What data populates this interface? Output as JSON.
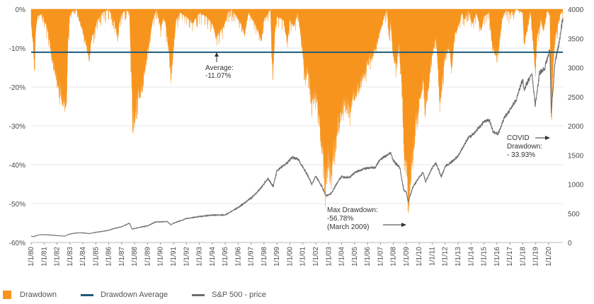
{
  "chart_data": {
    "type": "area",
    "x_tick_labels": [
      "1/1/80",
      "1/1/81",
      "1/1/82",
      "1/1/83",
      "1/1/84",
      "1/1/85",
      "1/1/86",
      "1/1/87",
      "1/1/88",
      "1/1/89",
      "1/1/90",
      "1/1/91",
      "1/1/92",
      "1/1/93",
      "1/1/94",
      "1/1/95",
      "1/1/96",
      "1/1/97",
      "1/1/98",
      "1/1/99",
      "1/1/00",
      "1/1/01",
      "1/1/02",
      "1/1/03",
      "1/1/04",
      "1/1/05",
      "1/1/06",
      "1/1/07",
      "1/1/08",
      "1/1/09",
      "1/1/10",
      "1/1/11",
      "1/1/12",
      "1/1/13",
      "1/1/14",
      "1/1/15",
      "1/1/16",
      "1/1/17",
      "1/1/18",
      "1/1/19",
      "1/1/20"
    ],
    "x_range": [
      1980,
      2021.1
    ],
    "y_left": {
      "ticks": [
        "0%",
        "-10%",
        "-20%",
        "-30%",
        "-40%",
        "-50%",
        "-60%"
      ],
      "range": [
        -60,
        0
      ]
    },
    "y_right": {
      "ticks": [
        "4000",
        "3500",
        "3000",
        "2500",
        "2000",
        "1500",
        "1000",
        "500",
        "0"
      ],
      "range": [
        0,
        4000
      ]
    },
    "average": -11.07,
    "colors": {
      "drawdown": "#f7941d",
      "average": "#1f5a7a",
      "price": "#6d6d6d"
    },
    "series": [
      {
        "name": "Drawdown",
        "kind": "area",
        "axis": "left",
        "points": [
          [
            1980.0,
            -4
          ],
          [
            1980.15,
            -9
          ],
          [
            1980.25,
            -17
          ],
          [
            1980.35,
            -6
          ],
          [
            1980.5,
            -2
          ],
          [
            1980.9,
            -1
          ],
          [
            1981.0,
            -3
          ],
          [
            1981.3,
            -6
          ],
          [
            1981.5,
            -11
          ],
          [
            1981.7,
            -16
          ],
          [
            1981.9,
            -18
          ],
          [
            1982.1,
            -21
          ],
          [
            1982.4,
            -25
          ],
          [
            1982.6,
            -27
          ],
          [
            1982.75,
            -24
          ],
          [
            1982.85,
            -9
          ],
          [
            1983.0,
            -1
          ],
          [
            1983.5,
            0
          ],
          [
            1983.8,
            -4
          ],
          [
            1984.2,
            -9
          ],
          [
            1984.5,
            -14
          ],
          [
            1984.7,
            -8
          ],
          [
            1984.9,
            -6
          ],
          [
            1985.1,
            -3
          ],
          [
            1985.5,
            -1
          ],
          [
            1986.0,
            0
          ],
          [
            1986.4,
            -3
          ],
          [
            1986.7,
            -8
          ],
          [
            1986.9,
            -2
          ],
          [
            1987.3,
            0
          ],
          [
            1987.6,
            -1
          ],
          [
            1987.75,
            -18
          ],
          [
            1987.85,
            -33
          ],
          [
            1988.0,
            -30
          ],
          [
            1988.3,
            -25
          ],
          [
            1988.6,
            -22
          ],
          [
            1988.9,
            -15
          ],
          [
            1989.1,
            -10
          ],
          [
            1989.4,
            -3
          ],
          [
            1989.7,
            0
          ],
          [
            1990.0,
            -5
          ],
          [
            1990.3,
            -2
          ],
          [
            1990.6,
            -10
          ],
          [
            1990.8,
            -19
          ],
          [
            1990.95,
            -14
          ],
          [
            1991.2,
            -3
          ],
          [
            1991.5,
            -1
          ],
          [
            1992.0,
            -2
          ],
          [
            1992.5,
            -4
          ],
          [
            1993.0,
            -1
          ],
          [
            1993.5,
            -2
          ],
          [
            1994.0,
            -4
          ],
          [
            1994.3,
            -8
          ],
          [
            1994.6,
            -6
          ],
          [
            1994.9,
            -5
          ],
          [
            1995.2,
            -1
          ],
          [
            1995.5,
            0
          ],
          [
            1996.2,
            -4
          ],
          [
            1996.5,
            -7
          ],
          [
            1996.8,
            -1
          ],
          [
            1997.3,
            -4
          ],
          [
            1997.8,
            -9
          ],
          [
            1998.0,
            -3
          ],
          [
            1998.5,
            0
          ],
          [
            1998.6,
            -13
          ],
          [
            1998.7,
            -19
          ],
          [
            1998.85,
            -6
          ],
          [
            1999.0,
            -2
          ],
          [
            1999.5,
            -3
          ],
          [
            1999.8,
            -10
          ],
          [
            2000.0,
            -3
          ],
          [
            2000.3,
            -5
          ],
          [
            2000.6,
            -1
          ],
          [
            2000.8,
            -6
          ],
          [
            2001.0,
            -12
          ],
          [
            2001.2,
            -20
          ],
          [
            2001.4,
            -17
          ],
          [
            2001.7,
            -28
          ],
          [
            2001.9,
            -24
          ],
          [
            2002.2,
            -30
          ],
          [
            2002.5,
            -40
          ],
          [
            2002.7,
            -48
          ],
          [
            2002.8,
            -50
          ],
          [
            2002.95,
            -43
          ],
          [
            2003.15,
            -48
          ],
          [
            2003.3,
            -41
          ],
          [
            2003.6,
            -36
          ],
          [
            2003.9,
            -31
          ],
          [
            2004.2,
            -26
          ],
          [
            2004.6,
            -29
          ],
          [
            2004.9,
            -24
          ],
          [
            2005.3,
            -22
          ],
          [
            2005.7,
            -19
          ],
          [
            2006.0,
            -15
          ],
          [
            2006.4,
            -13
          ],
          [
            2006.7,
            -10
          ],
          [
            2007.0,
            -6
          ],
          [
            2007.3,
            -2
          ],
          [
            2007.5,
            0
          ],
          [
            2007.7,
            -8
          ],
          [
            2007.8,
            -3
          ],
          [
            2008.0,
            -13
          ],
          [
            2008.2,
            -16
          ],
          [
            2008.45,
            -10
          ],
          [
            2008.7,
            -24
          ],
          [
            2008.85,
            -42
          ],
          [
            2009.0,
            -43
          ],
          [
            2009.15,
            -57
          ],
          [
            2009.3,
            -47
          ],
          [
            2009.5,
            -40
          ],
          [
            2009.8,
            -31
          ],
          [
            2010.0,
            -28
          ],
          [
            2010.3,
            -19
          ],
          [
            2010.45,
            -28
          ],
          [
            2010.7,
            -22
          ],
          [
            2011.0,
            -13
          ],
          [
            2011.3,
            -8
          ],
          [
            2011.6,
            -26
          ],
          [
            2011.8,
            -20
          ],
          [
            2012.0,
            -13
          ],
          [
            2012.3,
            -10
          ],
          [
            2012.5,
            -17
          ],
          [
            2012.7,
            -8
          ],
          [
            2013.0,
            -5
          ],
          [
            2013.3,
            -1
          ],
          [
            2013.5,
            -3
          ],
          [
            2013.8,
            0
          ],
          [
            2014.1,
            -4
          ],
          [
            2014.4,
            -1
          ],
          [
            2014.8,
            -6
          ],
          [
            2015.0,
            -2
          ],
          [
            2015.4,
            -1
          ],
          [
            2015.65,
            -11
          ],
          [
            2016.1,
            -13
          ],
          [
            2016.4,
            -3
          ],
          [
            2016.7,
            0
          ],
          [
            2017.0,
            -1
          ],
          [
            2017.5,
            0
          ],
          [
            2018.0,
            -1
          ],
          [
            2018.1,
            -10
          ],
          [
            2018.3,
            -7
          ],
          [
            2018.6,
            0
          ],
          [
            2018.9,
            -14
          ],
          [
            2018.97,
            -19
          ],
          [
            2019.1,
            -8
          ],
          [
            2019.4,
            -3
          ],
          [
            2019.6,
            -6
          ],
          [
            2019.9,
            0
          ],
          [
            2020.1,
            -2
          ],
          [
            2020.2,
            -34
          ],
          [
            2020.35,
            -16
          ],
          [
            2020.5,
            -8
          ],
          [
            2020.7,
            -5
          ],
          [
            2020.85,
            -2
          ],
          [
            2021.1,
            0
          ]
        ]
      },
      {
        "name": "Drawdown Average",
        "kind": "line",
        "axis": "left"
      },
      {
        "name": "S&P 500 - price",
        "kind": "line",
        "axis": "right",
        "points": [
          [
            1980.0,
            108
          ],
          [
            1980.2,
            100
          ],
          [
            1980.6,
            130
          ],
          [
            1980.9,
            136
          ],
          [
            1981.5,
            128
          ],
          [
            1982.6,
            108
          ],
          [
            1982.9,
            140
          ],
          [
            1983.5,
            165
          ],
          [
            1984.0,
            165
          ],
          [
            1984.5,
            153
          ],
          [
            1985.0,
            175
          ],
          [
            1985.5,
            190
          ],
          [
            1986.0,
            210
          ],
          [
            1986.5,
            245
          ],
          [
            1987.0,
            270
          ],
          [
            1987.6,
            330
          ],
          [
            1987.8,
            230
          ],
          [
            1988.5,
            265
          ],
          [
            1989.0,
            285
          ],
          [
            1989.6,
            350
          ],
          [
            1990.5,
            360
          ],
          [
            1990.8,
            305
          ],
          [
            1991.0,
            330
          ],
          [
            1992.0,
            410
          ],
          [
            1993.0,
            445
          ],
          [
            1994.0,
            470
          ],
          [
            1995.0,
            470
          ],
          [
            1996.0,
            600
          ],
          [
            1997.0,
            760
          ],
          [
            1997.8,
            940
          ],
          [
            1998.3,
            1100
          ],
          [
            1998.7,
            960
          ],
          [
            1999.0,
            1230
          ],
          [
            1999.7,
            1350
          ],
          [
            2000.2,
            1460
          ],
          [
            2000.6,
            1440
          ],
          [
            2000.9,
            1330
          ],
          [
            2001.3,
            1180
          ],
          [
            2001.7,
            1000
          ],
          [
            2002.0,
            1140
          ],
          [
            2002.5,
            950
          ],
          [
            2002.8,
            800
          ],
          [
            2003.2,
            840
          ],
          [
            2003.6,
            1000
          ],
          [
            2004.0,
            1130
          ],
          [
            2004.6,
            1110
          ],
          [
            2005.0,
            1200
          ],
          [
            2006.0,
            1280
          ],
          [
            2006.6,
            1290
          ],
          [
            2007.0,
            1430
          ],
          [
            2007.8,
            1530
          ],
          [
            2008.0,
            1400
          ],
          [
            2008.5,
            1280
          ],
          [
            2008.8,
            900
          ],
          [
            2009.0,
            860
          ],
          [
            2009.15,
            690
          ],
          [
            2009.5,
            950
          ],
          [
            2010.0,
            1120
          ],
          [
            2010.3,
            1200
          ],
          [
            2010.5,
            1040
          ],
          [
            2011.0,
            1280
          ],
          [
            2011.3,
            1360
          ],
          [
            2011.7,
            1130
          ],
          [
            2012.0,
            1300
          ],
          [
            2012.5,
            1380
          ],
          [
            2013.0,
            1480
          ],
          [
            2013.8,
            1800
          ],
          [
            2014.3,
            1880
          ],
          [
            2014.9,
            2050
          ],
          [
            2015.4,
            2110
          ],
          [
            2015.7,
            1900
          ],
          [
            2016.1,
            1860
          ],
          [
            2016.6,
            2150
          ],
          [
            2017.0,
            2270
          ],
          [
            2017.5,
            2450
          ],
          [
            2018.0,
            2800
          ],
          [
            2018.1,
            2620
          ],
          [
            2018.7,
            2900
          ],
          [
            2018.97,
            2350
          ],
          [
            2019.3,
            2900
          ],
          [
            2019.7,
            3000
          ],
          [
            2020.1,
            3300
          ],
          [
            2020.2,
            2240
          ],
          [
            2020.5,
            3100
          ],
          [
            2020.8,
            3400
          ],
          [
            2021.1,
            3850
          ]
        ]
      }
    ],
    "annotations": {
      "average": [
        "Average:",
        "-11.07%"
      ],
      "max": [
        "Max Drawdown:",
        "-56.78%",
        "(March 2009)"
      ],
      "covid": [
        "COVID",
        "Drawdown:",
        "- 33.93%"
      ]
    },
    "legend_placement": "bottom-left"
  }
}
